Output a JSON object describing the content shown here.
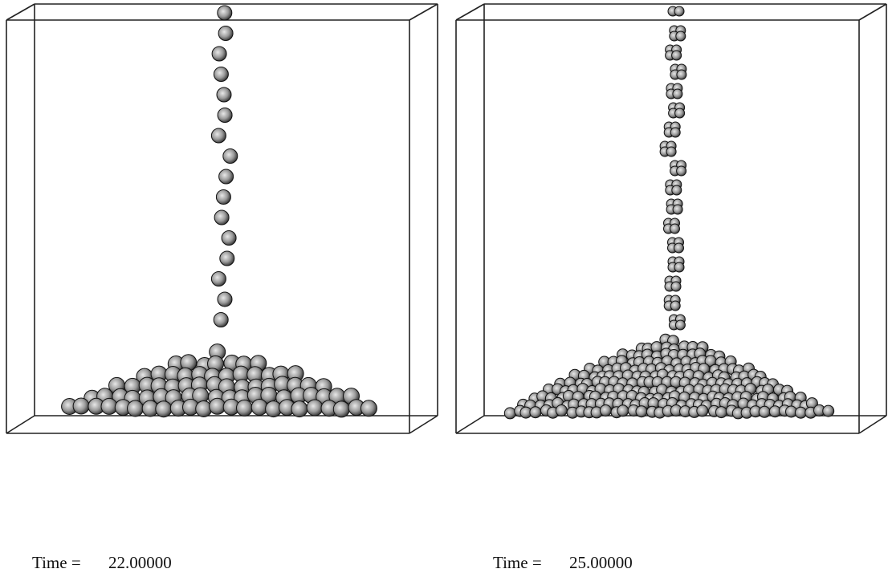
{
  "panels": [
    {
      "label": "Time =",
      "value": "22.00000"
    },
    {
      "label": "Time =",
      "value": "25.00000"
    }
  ]
}
